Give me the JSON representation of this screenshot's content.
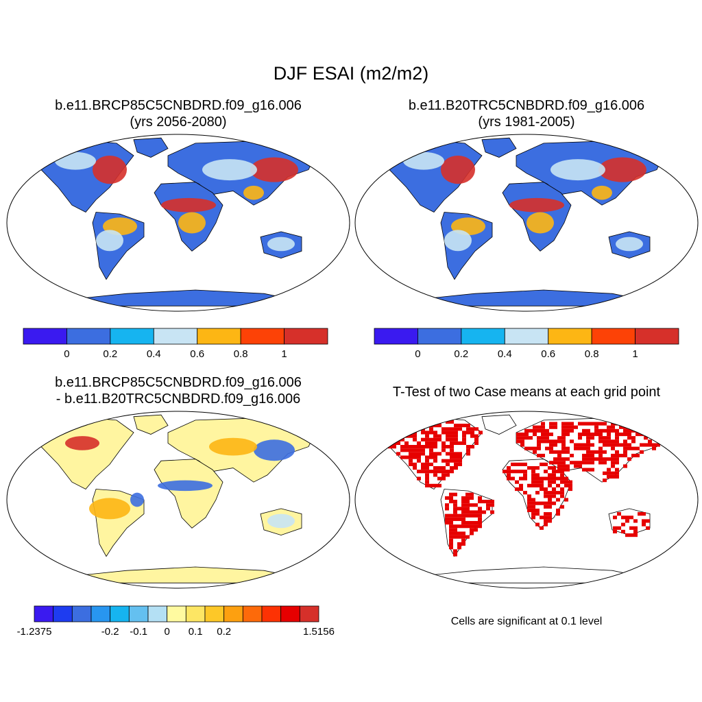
{
  "main_title": "DJF ESAI (m2/m2)",
  "panels": [
    {
      "title_line1": "b.e11.BRCP85C5CNBDRD.f09_g16.006",
      "title_line2": "(yrs 2056-2080)"
    },
    {
      "title_line1": "b.e11.B20TRC5CNBDRD.f09_g16.006",
      "title_line2": "(yrs 1981-2005)"
    },
    {
      "title_line1": "b.e11.BRCP85C5CNBDRD.f09_g16.006",
      "title_line2": "- b.e11.B20TRC5CNBDRD.f09_g16.006"
    },
    {
      "title_line1": "T-Test of two Case means at each grid point",
      "title_line2": ""
    }
  ],
  "colorbar_abs": {
    "colors": [
      "#3a1af0",
      "#3c6ee0",
      "#16b4f0",
      "#c8e4f4",
      "#fdb614",
      "#fd4206",
      "#d6302a"
    ],
    "labels": [
      "0",
      "0.2",
      "0.4",
      "0.6",
      "0.8",
      "1"
    ]
  },
  "colorbar_diff": {
    "colors": [
      "#3a1af0",
      "#1e3cf0",
      "#3c6ee0",
      "#2896f0",
      "#16b4f0",
      "#64c0f0",
      "#b4e0f4",
      "#fffaa0",
      "#fde664",
      "#fdc828",
      "#fda010",
      "#fd6a0a",
      "#fd3204",
      "#e60000",
      "#d6302a"
    ],
    "labels": [
      "-1.2375",
      "-0.2",
      "-0.1",
      "0",
      "0.1",
      "0.2",
      "1.5156"
    ]
  },
  "significance_note": "Cells are significant at 0.1 level",
  "map_colors": {
    "ocean": "#ffffff",
    "land_base_abs": "#3c6ee0",
    "land_mid_abs": "#c8e4f4",
    "land_high_abs": "#d6302a",
    "land_warm_abs": "#fdb614",
    "land_base_diff": "#fff5a0",
    "significant": "#e60000"
  }
}
